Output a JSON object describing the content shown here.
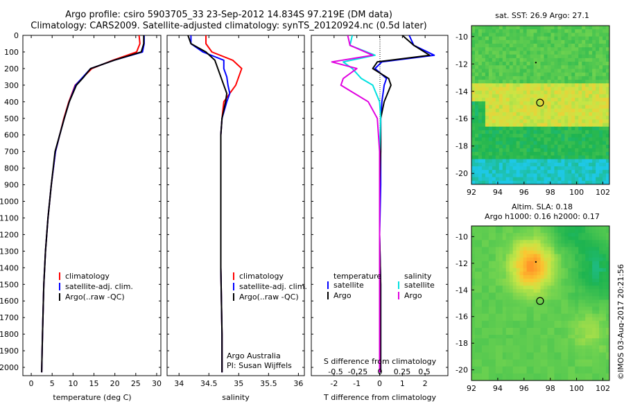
{
  "header": {
    "line1": "Argo profile: csiro 5903705_33 23-Sep-2012 14.834S 97.219E (DM data)",
    "line2": "Climatology: CARS2009. Satellite-adjusted climatology: synTS_20120924.nc (0.5d later)"
  },
  "credit": "©IMOS 03-Aug-2017 20:21:56",
  "colors": {
    "climatology": "#ff0000",
    "satellite": "#0000ff",
    "argo": "#000000",
    "sat_salinity": "#00e0e0",
    "argo_salinity": "#e000e0"
  },
  "chart_data": [
    {
      "type": "line",
      "name": "temperature-panel",
      "xlabel": "temperature (deg C)",
      "ylabel": "",
      "xlim": [
        -2,
        31
      ],
      "ylim": [
        2050,
        0
      ],
      "xticks": [
        "0",
        "5",
        "10",
        "15",
        "20",
        "25",
        "30"
      ],
      "yticks": [
        "0",
        "100",
        "200",
        "300",
        "400",
        "500",
        "600",
        "700",
        "800",
        "900",
        "1000",
        "1100",
        "1200",
        "1300",
        "1400",
        "1500",
        "1600",
        "1700",
        "1800",
        "1900",
        "2000"
      ],
      "legend": [
        "climatology",
        "satellite-adj. clim.",
        "Argo(..raw -QC)"
      ],
      "series": [
        {
          "name": "climatology",
          "color": "#ff0000",
          "x": [
            25.8,
            26.0,
            25.2,
            19.5,
            14.5,
            12.5,
            10.5,
            9.0,
            7.8,
            6.8,
            5.8,
            4.8,
            4.0,
            3.4,
            3.0,
            2.7,
            2.5
          ],
          "depth": [
            0,
            50,
            100,
            150,
            200,
            250,
            300,
            400,
            500,
            600,
            700,
            900,
            1100,
            1300,
            1500,
            1800,
            2030
          ]
        },
        {
          "name": "satellite",
          "color": "#0000ff",
          "x": [
            27.0,
            27.0,
            26.6,
            19.8,
            14.2,
            12.4,
            10.6,
            9.1,
            7.9,
            6.8,
            5.8,
            4.8,
            4.0,
            3.4,
            3.0,
            2.7,
            2.5
          ],
          "depth": [
            0,
            50,
            100,
            150,
            200,
            250,
            300,
            400,
            500,
            600,
            700,
            900,
            1100,
            1300,
            1500,
            1800,
            2030
          ]
        },
        {
          "name": "Argo",
          "color": "#000000",
          "x": [
            26.9,
            26.9,
            26.3,
            19.8,
            14.2,
            12.6,
            10.8,
            9.1,
            7.9,
            6.8,
            5.7,
            4.8,
            4.0,
            3.4,
            3.0,
            2.7,
            2.5
          ],
          "depth": [
            0,
            50,
            100,
            150,
            200,
            250,
            300,
            400,
            500,
            600,
            700,
            900,
            1100,
            1300,
            1500,
            1800,
            2030
          ]
        }
      ]
    },
    {
      "type": "line",
      "name": "salinity-panel",
      "xlabel": "salinity",
      "xlim": [
        33.8,
        36.1
      ],
      "ylim": [
        2050,
        0
      ],
      "xticks": [
        "34",
        "34.5",
        "35",
        "35.5",
        "36"
      ],
      "legend": [
        "climatology",
        "satellite-adj. clim.",
        "Argo(..raw -QC)"
      ],
      "annotation": [
        "Argo Australia",
        "PI: Susan Wijffels"
      ],
      "series": [
        {
          "name": "climatology",
          "color": "#ff0000",
          "x": [
            34.45,
            34.45,
            34.55,
            34.9,
            35.05,
            35.0,
            34.95,
            34.85,
            34.75,
            34.72,
            34.7,
            34.7,
            34.7,
            34.7,
            34.72,
            34.72
          ],
          "depth": [
            0,
            50,
            100,
            150,
            200,
            250,
            300,
            350,
            400,
            500,
            600,
            800,
            1000,
            1400,
            1800,
            2030
          ]
        },
        {
          "name": "satellite",
          "color": "#0000ff",
          "x": [
            34.2,
            34.2,
            34.4,
            34.75,
            34.75,
            34.8,
            34.82,
            34.85,
            34.8,
            34.72,
            34.7,
            34.7,
            34.7,
            34.7,
            34.72,
            34.72
          ],
          "depth": [
            0,
            50,
            100,
            150,
            200,
            250,
            300,
            350,
            400,
            500,
            600,
            800,
            1000,
            1400,
            1800,
            2030
          ]
        },
        {
          "name": "Argo",
          "color": "#000000",
          "x": [
            34.15,
            34.2,
            34.45,
            34.6,
            34.65,
            34.7,
            34.75,
            34.8,
            34.78,
            34.72,
            34.7,
            34.7,
            34.7,
            34.7,
            34.72,
            34.72
          ],
          "depth": [
            0,
            50,
            100,
            150,
            200,
            250,
            300,
            350,
            400,
            500,
            600,
            800,
            1000,
            1400,
            1800,
            2030
          ]
        }
      ]
    },
    {
      "type": "line",
      "name": "difference-panel",
      "xlabel": "T difference from climatology",
      "xlabel2": "S difference from climatology",
      "xlim": [
        -3,
        3
      ],
      "ylim": [
        2050,
        0
      ],
      "xticks": [
        "-2",
        "-1",
        "0",
        "1",
        "2"
      ],
      "xticks2": [
        "-0.5",
        "-0.25",
        "0",
        "0.25",
        "0.5"
      ],
      "legend_headers": [
        "temperature",
        "salinity"
      ],
      "legend": [
        "satellite",
        "Argo",
        "satellite",
        "Argo"
      ],
      "series": [
        {
          "name": "T satellite",
          "color": "#0000ff",
          "x": [
            1.3,
            1.5,
            2.4,
            0.1,
            -0.2,
            0.3,
            0.2,
            0.1,
            0.05,
            0.05,
            0.05,
            0.0,
            0.05,
            0.05,
            0.05
          ],
          "depth": [
            0,
            60,
            120,
            160,
            200,
            260,
            300,
            400,
            500,
            700,
            900,
            1200,
            1500,
            1800,
            2030
          ]
        },
        {
          "name": "T Argo",
          "color": "#000000",
          "x": [
            1.0,
            1.5,
            2.2,
            -0.1,
            -0.3,
            0.4,
            0.5,
            0.2,
            0.05,
            0.05,
            0.0,
            0.0,
            0.05,
            0.05,
            0.05
          ],
          "depth": [
            0,
            60,
            120,
            160,
            200,
            260,
            300,
            400,
            500,
            700,
            900,
            1200,
            1500,
            1800,
            2030
          ]
        },
        {
          "name": "S satellite",
          "color": "#00e0e0",
          "x": [
            -1.2,
            -1.3,
            -0.2,
            -1.6,
            -1.2,
            -0.8,
            -0.3,
            0.0,
            0.05,
            0.0,
            0.0,
            0.0,
            0.0,
            0.0,
            0.0
          ],
          "depth": [
            0,
            60,
            120,
            160,
            200,
            260,
            300,
            400,
            500,
            700,
            900,
            1200,
            1500,
            1800,
            2030
          ]
        },
        {
          "name": "S Argo",
          "color": "#e000e0",
          "x": [
            -1.4,
            -1.3,
            -0.3,
            -2.1,
            -1.0,
            -1.6,
            -1.7,
            -0.5,
            -0.1,
            0.0,
            0.0,
            0.0,
            0.0,
            0.0,
            0.0
          ],
          "depth": [
            0,
            60,
            120,
            160,
            200,
            260,
            300,
            400,
            500,
            700,
            900,
            1200,
            1500,
            1800,
            2030
          ]
        }
      ]
    },
    {
      "type": "heatmap",
      "name": "sst-map",
      "title": "sat. SST: 26.9 Argo: 27.1",
      "xticks": [
        "92",
        "94",
        "96",
        "98",
        "100",
        "102"
      ],
      "yticks": [
        "-10",
        "-12",
        "-14",
        "-16",
        "-18",
        "-20"
      ],
      "xlim": [
        92,
        102.5
      ],
      "ylim": [
        -20.8,
        -9.2
      ],
      "float_position": {
        "lon": 97.22,
        "lat": -14.83
      }
    },
    {
      "type": "heatmap",
      "name": "sla-map",
      "title": "Altim. SLA: 0.18",
      "subtitle": "Argo h1000: 0.16 h2000: 0.17",
      "xticks": [
        "92",
        "94",
        "96",
        "98",
        "100",
        "102"
      ],
      "yticks": [
        "-10",
        "-12",
        "-14",
        "-16",
        "-18",
        "-20"
      ],
      "xlim": [
        92,
        102.5
      ],
      "ylim": [
        -20.8,
        -9.2
      ],
      "float_position": {
        "lon": 97.22,
        "lat": -14.83
      }
    }
  ]
}
